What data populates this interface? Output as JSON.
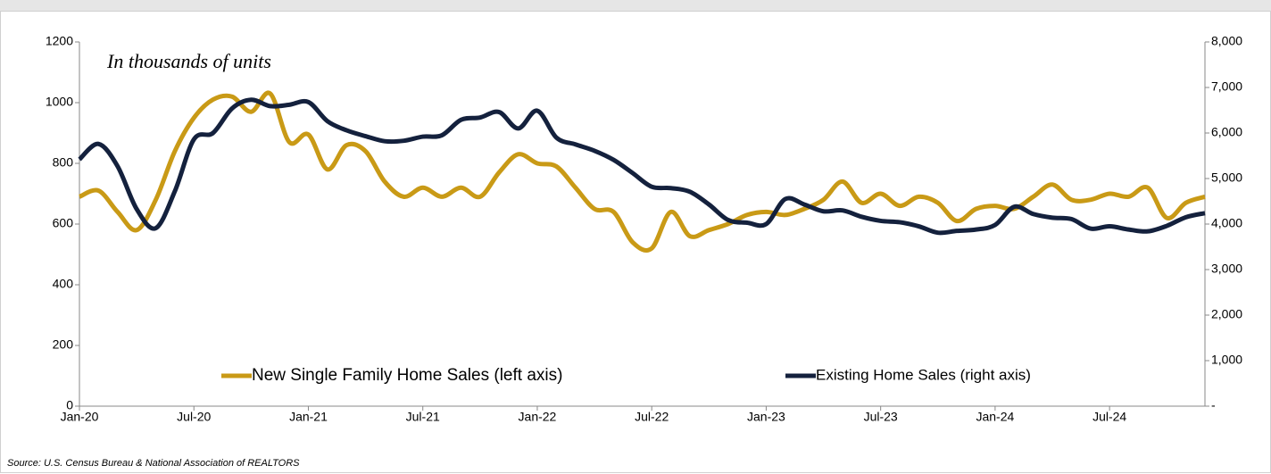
{
  "chart_data": {
    "type": "line",
    "annotation": "In thousands of units",
    "source": "Source: U.S. Census Bureau & National Association of REALTORS",
    "categories": [
      "Jan-20",
      null,
      null,
      null,
      null,
      null,
      "Jul-20",
      null,
      null,
      null,
      null,
      null,
      "Jan-21",
      null,
      null,
      null,
      null,
      null,
      "Jul-21",
      null,
      null,
      null,
      null,
      null,
      "Jan-22",
      null,
      null,
      null,
      null,
      null,
      "Jul-22",
      null,
      null,
      null,
      null,
      null,
      "Jan-23",
      null,
      null,
      null,
      null,
      null,
      "Jul-23",
      null,
      null,
      null,
      null,
      null,
      "Jan-24",
      null,
      null,
      null,
      null,
      null,
      "Jul-24",
      null,
      null,
      null,
      null,
      null
    ],
    "series": [
      {
        "name": "New Single Family Home Sales (left axis)",
        "color": "#c99a16",
        "axis": "y",
        "values": [
          690,
          710,
          640,
          580,
          680,
          840,
          950,
          1010,
          1020,
          970,
          1030,
          870,
          895,
          780,
          860,
          840,
          740,
          690,
          720,
          690,
          720,
          690,
          770,
          830,
          800,
          790,
          720,
          650,
          640,
          540,
          520,
          640,
          560,
          580,
          600,
          630,
          640,
          630,
          650,
          680,
          740,
          670,
          700,
          660,
          690,
          670,
          610,
          650,
          660,
          650,
          690,
          730,
          680,
          680,
          700,
          690,
          720,
          620,
          670,
          690
        ]
      },
      {
        "name": "Existing Home Sales (right axis)",
        "color": "#14213d",
        "axis": "y2",
        "values": [
          5420,
          5760,
          5270,
          4330,
          3910,
          4720,
          5860,
          6000,
          6540,
          6730,
          6590,
          6620,
          6680,
          6260,
          6060,
          5930,
          5820,
          5830,
          5920,
          5950,
          6290,
          6340,
          6460,
          6100,
          6490,
          5900,
          5750,
          5610,
          5410,
          5120,
          4820,
          4790,
          4710,
          4430,
          4090,
          4030,
          4000,
          4550,
          4430,
          4280,
          4300,
          4160,
          4070,
          4040,
          3950,
          3810,
          3850,
          3880,
          3980,
          4380,
          4220,
          4140,
          4110,
          3900,
          3950,
          3880,
          3840,
          3960,
          4150,
          4240
        ]
      }
    ],
    "ylim": [
      0,
      1200
    ],
    "yticks": [
      0,
      200,
      400,
      600,
      800,
      1000,
      1200
    ],
    "y2lim": [
      0,
      8000
    ],
    "y2ticks": [
      {
        "value": 0,
        "label": "-"
      },
      {
        "value": 1000,
        "label": "1,000"
      },
      {
        "value": 2000,
        "label": "2,000"
      },
      {
        "value": 3000,
        "label": "3,000"
      },
      {
        "value": 4000,
        "label": "4,000"
      },
      {
        "value": 5000,
        "label": "5,000"
      },
      {
        "value": 6000,
        "label": "6,000"
      },
      {
        "value": 7000,
        "label": "7,000"
      },
      {
        "value": 8000,
        "label": "8,000"
      }
    ],
    "grid": false,
    "legend": "bottom"
  }
}
